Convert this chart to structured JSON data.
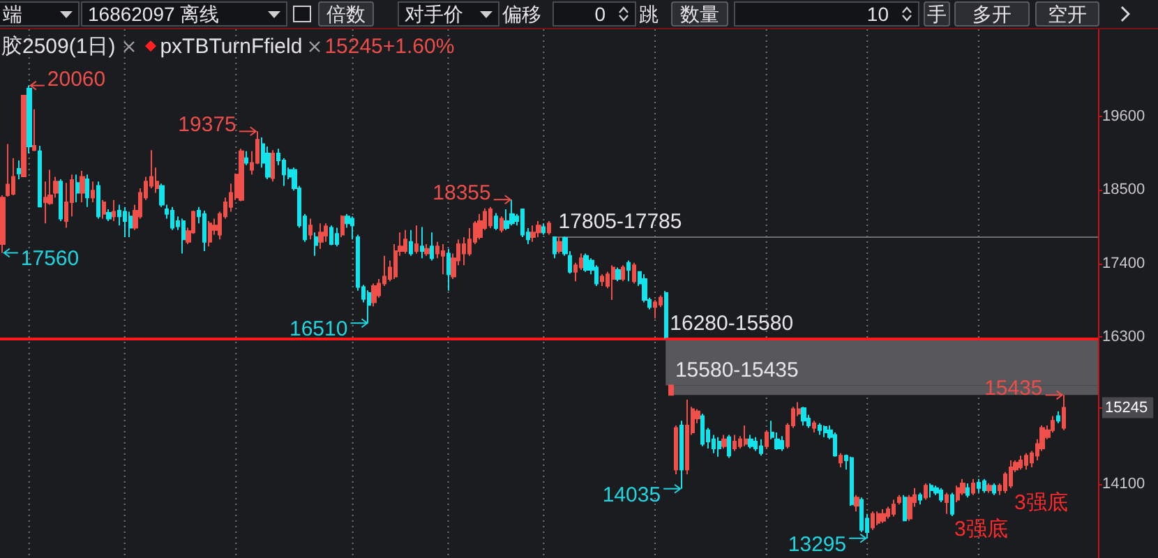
{
  "chart_data": {
    "type": "candlestick",
    "title": "胶2509(1日)",
    "subtitle": "pxTBTurnFfield",
    "annotations": [
      "端",
      "16862097 离线",
      "倍数",
      "对手价",
      "偏移",
      "0",
      "跳",
      "数量",
      "10",
      "手",
      "多开",
      "空开",
      "15245+1.60%",
      "20060",
      "17560",
      "19375",
      "16510",
      "18355",
      "14035",
      "13295",
      "15435",
      "3强底",
      "3强底"
    ],
    "categories": [
      null,
      null,
      null,
      null,
      null,
      null,
      null,
      null,
      null,
      null,
      null,
      null,
      null,
      null,
      null,
      null,
      null,
      null,
      null,
      null,
      null,
      null,
      null,
      null,
      null,
      null,
      null,
      null,
      null,
      null,
      null,
      null,
      null,
      null,
      null,
      null,
      null,
      null,
      null,
      null,
      null,
      null,
      null,
      null,
      null,
      null,
      null,
      null,
      null,
      null,
      null,
      null,
      null,
      null,
      null,
      null,
      null,
      null,
      null,
      null,
      null,
      null,
      null,
      null,
      null,
      null,
      null,
      null,
      null,
      null,
      null,
      null,
      null,
      null,
      null,
      null,
      null,
      null,
      null,
      null,
      null,
      null,
      null,
      null,
      null,
      null,
      null,
      null,
      null,
      null,
      null,
      null,
      null,
      null,
      null,
      null,
      null,
      null,
      null,
      null,
      null,
      null,
      null,
      null,
      null,
      null,
      null,
      null,
      null,
      null,
      null,
      null,
      null,
      null,
      null,
      null,
      null,
      null,
      null,
      null,
      null,
      null,
      null,
      null,
      null,
      null,
      null,
      null,
      null,
      null,
      null,
      null,
      null,
      null,
      null,
      null,
      null,
      null,
      null,
      null,
      null,
      null,
      null,
      null,
      null,
      null,
      null,
      null,
      null,
      null,
      null,
      null,
      null,
      null,
      null,
      null,
      null,
      null,
      null,
      null,
      null,
      null,
      null,
      null,
      null,
      null,
      null,
      null,
      null,
      null,
      null,
      null,
      null,
      null,
      null,
      null,
      null,
      null,
      null,
      null,
      null,
      null,
      null,
      null,
      null,
      null,
      null,
      null,
      null,
      null,
      null,
      null,
      null,
      null,
      null,
      null,
      null,
      null,
      null,
      null,
      null,
      null,
      null,
      null,
      null,
      null,
      null
    ],
    "ohlc": [
      [
        17690,
        18420,
        17560,
        18385
      ],
      [
        18420,
        19185,
        18400,
        18580
      ],
      [
        18440,
        18975,
        18420,
        18695
      ],
      [
        18815,
        18940,
        18660,
        18745
      ],
      [
        18700,
        19910,
        18690,
        19910
      ],
      [
        20015,
        20060,
        19045,
        19150
      ],
      [
        19095,
        19705,
        19080,
        19160
      ],
      [
        19080,
        19160,
        18245,
        18250
      ],
      [
        18315,
        18625,
        18000,
        18385
      ],
      [
        18300,
        18800,
        18280,
        18420
      ],
      [
        18455,
        18695,
        18385,
        18625
      ],
      [
        18625,
        18660,
        18035,
        18070
      ],
      [
        18035,
        18605,
        17935,
        18315
      ],
      [
        18315,
        18730,
        18105,
        18650
      ],
      [
        18605,
        18730,
        18315,
        18455
      ],
      [
        18455,
        18785,
        18315,
        18695
      ],
      [
        18660,
        18730,
        18245,
        18385
      ],
      [
        18385,
        18625,
        18315,
        18490
      ],
      [
        18560,
        18625,
        18070,
        18105
      ],
      [
        18140,
        18350,
        18070,
        18315
      ],
      [
        18160,
        18210,
        18035,
        18070
      ],
      [
        18105,
        18350,
        18035,
        18175
      ],
      [
        18190,
        18280,
        17970,
        18105
      ],
      [
        18175,
        18245,
        17795,
        18035
      ],
      [
        18105,
        18175,
        17795,
        17935
      ],
      [
        17935,
        18280,
        17900,
        18190
      ],
      [
        18105,
        18525,
        18070,
        18455
      ],
      [
        18385,
        18695,
        18350,
        18625
      ],
      [
        18560,
        19095,
        18525,
        18695
      ],
      [
        18525,
        18835,
        18455,
        18625
      ],
      [
        18560,
        18595,
        18245,
        18280
      ],
      [
        18210,
        18280,
        18070,
        18140
      ],
      [
        18190,
        18245,
        17900,
        17935
      ],
      [
        18035,
        18105,
        17900,
        17955
      ],
      [
        18035,
        18070,
        17550,
        17760
      ],
      [
        17725,
        17935,
        17690,
        17885
      ],
      [
        17865,
        18190,
        17845,
        18175
      ],
      [
        18190,
        18245,
        18000,
        18105
      ],
      [
        18140,
        18190,
        17585,
        17725
      ],
      [
        17725,
        18035,
        17655,
        18000
      ],
      [
        17900,
        18070,
        17830,
        17970
      ],
      [
        17830,
        18175,
        17760,
        18140
      ],
      [
        18105,
        18385,
        18070,
        18315
      ],
      [
        18245,
        18595,
        18175,
        18455
      ],
      [
        18385,
        18745,
        18350,
        18730
      ],
      [
        18350,
        19115,
        18330,
        19080
      ],
      [
        18975,
        19080,
        18870,
        18905
      ],
      [
        18800,
        19080,
        18730,
        18905
      ],
      [
        18905,
        19375,
        18885,
        19250
      ],
      [
        19185,
        19285,
        18835,
        18905
      ],
      [
        19045,
        19150,
        18660,
        18695
      ],
      [
        18675,
        19095,
        18625,
        19045
      ],
      [
        19045,
        19115,
        18870,
        18940
      ],
      [
        18940,
        18975,
        18560,
        18730
      ],
      [
        18800,
        18835,
        18660,
        18695
      ],
      [
        18800,
        18835,
        18490,
        18525
      ],
      [
        18525,
        18560,
        17935,
        17970
      ],
      [
        18105,
        18140,
        17725,
        17760
      ],
      [
        17830,
        18070,
        17760,
        17970
      ],
      [
        17795,
        17865,
        17515,
        17675
      ],
      [
        17725,
        18000,
        17620,
        17865
      ],
      [
        17815,
        18000,
        17725,
        17955
      ],
      [
        17935,
        17970,
        17675,
        17690
      ],
      [
        17845,
        17935,
        17655,
        17690
      ],
      [
        17830,
        18120,
        17795,
        18105
      ],
      [
        18105,
        18140,
        17935,
        18000
      ],
      [
        18070,
        18105,
        17760,
        17970
      ],
      [
        17795,
        17830,
        16995,
        17050
      ],
      [
        17050,
        17080,
        16820,
        16870
      ],
      [
        16960,
        17000,
        16510,
        16780
      ],
      [
        16820,
        17100,
        16760,
        17065
      ],
      [
        16925,
        17170,
        16890,
        17100
      ],
      [
        17100,
        17515,
        17065,
        17205
      ],
      [
        17170,
        17445,
        17135,
        17340
      ],
      [
        17205,
        17690,
        17170,
        17585
      ],
      [
        17585,
        17865,
        17515,
        17655
      ],
      [
        17585,
        17900,
        17550,
        17760
      ],
      [
        17725,
        17900,
        17515,
        17550
      ],
      [
        17585,
        17970,
        17550,
        17690
      ],
      [
        17655,
        17945,
        17480,
        17585
      ],
      [
        17550,
        17690,
        17515,
        17620
      ],
      [
        17655,
        17865,
        17445,
        17480
      ],
      [
        17550,
        17725,
        17480,
        17655
      ],
      [
        17515,
        17690,
        17240,
        17585
      ],
      [
        17550,
        17620,
        16995,
        17240
      ],
      [
        17205,
        17550,
        17170,
        17480
      ],
      [
        17445,
        17760,
        17375,
        17690
      ],
      [
        17550,
        17795,
        17375,
        17690
      ],
      [
        17550,
        17930,
        17515,
        17760
      ],
      [
        17725,
        18035,
        17690,
        18000
      ],
      [
        17795,
        18140,
        17760,
        18035
      ],
      [
        17930,
        18225,
        17900,
        18175
      ],
      [
        17970,
        18245,
        17930,
        18210
      ],
      [
        18105,
        18155,
        17900,
        17930
      ],
      [
        17900,
        18105,
        17865,
        18070
      ],
      [
        18035,
        18210,
        17900,
        17930
      ],
      [
        18140,
        18355,
        17970,
        18000
      ],
      [
        18105,
        18140,
        17970,
        18035
      ],
      [
        18210,
        18215,
        17795,
        17830
      ],
      [
        17865,
        17930,
        17690,
        17760
      ],
      [
        17795,
        17970,
        17725,
        17865
      ],
      [
        17865,
        18035,
        17795,
        17970
      ],
      [
        17945,
        18000,
        17830,
        17865
      ],
      [
        17865,
        18035,
        17830,
        18000
      ],
      [
        17795,
        17805,
        17480,
        17550
      ],
      [
        17585,
        17795,
        17550,
        17725
      ],
      [
        17785,
        17805,
        17515,
        17550
      ],
      [
        17515,
        17585,
        17250,
        17275
      ],
      [
        17275,
        17410,
        17135,
        17375
      ],
      [
        17340,
        17550,
        17305,
        17480
      ],
      [
        17515,
        17550,
        17275,
        17305
      ],
      [
        17445,
        17480,
        17240,
        17305
      ],
      [
        17340,
        17375,
        17065,
        17100
      ],
      [
        17135,
        17240,
        17065,
        17205
      ],
      [
        17065,
        17275,
        17030,
        17240
      ],
      [
        17170,
        17375,
        16855,
        17340
      ],
      [
        17305,
        17340,
        17135,
        17170
      ],
      [
        17170,
        17375,
        17135,
        17340
      ],
      [
        17410,
        17445,
        17135,
        17305
      ],
      [
        17135,
        17410,
        17100,
        17375
      ],
      [
        17275,
        17280,
        17065,
        17100
      ],
      [
        17170,
        17240,
        16820,
        16855
      ],
      [
        16855,
        16890,
        16715,
        16750
      ],
      [
        16750,
        16855,
        16580,
        16820
      ],
      [
        16785,
        16925,
        16750,
        16890
      ],
      [
        16960,
        16990,
        16280,
        16300
      ],
      [
        15435,
        15580,
        15435,
        15580
      ],
      [
        14320,
        14980,
        14250,
        14945
      ],
      [
        14980,
        15050,
        14035,
        14320
      ],
      [
        14320,
        15365,
        14250,
        14980
      ],
      [
        14875,
        15260,
        14840,
        15225
      ],
      [
        15085,
        15225,
        15015,
        15190
      ],
      [
        15120,
        15155,
        14670,
        14705
      ],
      [
        14910,
        14945,
        14635,
        14740
      ],
      [
        14775,
        14840,
        14565,
        14635
      ],
      [
        14740,
        14805,
        14515,
        14635
      ],
      [
        14670,
        14840,
        14635,
        14775
      ],
      [
        14805,
        14840,
        14495,
        14530
      ],
      [
        14635,
        14840,
        14600,
        14740
      ],
      [
        14670,
        14820,
        14635,
        14775
      ],
      [
        14705,
        14980,
        14670,
        14775
      ],
      [
        14775,
        14840,
        14635,
        14670
      ],
      [
        14740,
        14805,
        14600,
        14635
      ],
      [
        14670,
        14775,
        14530,
        14565
      ],
      [
        14670,
        14910,
        14635,
        14875
      ],
      [
        14875,
        15050,
        14775,
        14805
      ],
      [
        14775,
        14875,
        14615,
        14635
      ],
      [
        14750,
        14820,
        14600,
        14635
      ],
      [
        14670,
        15015,
        14635,
        14980
      ],
      [
        14980,
        15260,
        14945,
        15225
      ],
      [
        15155,
        15330,
        15120,
        15225
      ],
      [
        15240,
        15260,
        14980,
        15050
      ],
      [
        15085,
        15140,
        14945,
        14980
      ],
      [
        14945,
        15050,
        14875,
        15015
      ],
      [
        14980,
        15015,
        14840,
        14910
      ],
      [
        14960,
        14980,
        14805,
        14875
      ],
      [
        14910,
        14980,
        14775,
        14805
      ],
      [
        14840,
        14875,
        14515,
        14530
      ],
      [
        14425,
        14565,
        14355,
        14530
      ],
      [
        14530,
        14545,
        14320,
        14460
      ],
      [
        14495,
        14515,
        13780,
        13800
      ],
      [
        13780,
        13940,
        13695,
        13905
      ],
      [
        13870,
        13905,
        13385,
        13420
      ],
      [
        13590,
        13660,
        13295,
        13385
      ],
      [
        13455,
        13695,
        13420,
        13660
      ],
      [
        13525,
        13695,
        13490,
        13660
      ],
      [
        13555,
        13730,
        13525,
        13660
      ],
      [
        13625,
        13765,
        13590,
        13730
      ],
      [
        13660,
        13870,
        13620,
        13800
      ],
      [
        13835,
        13940,
        13800,
        13905
      ],
      [
        13905,
        13940,
        13555,
        13560
      ],
      [
        13590,
        13940,
        13555,
        13905
      ],
      [
        13835,
        14045,
        13765,
        13940
      ],
      [
        13940,
        13975,
        13800,
        13870
      ],
      [
        13905,
        14115,
        13870,
        14080
      ],
      [
        14080,
        14115,
        13905,
        14010
      ],
      [
        14045,
        14080,
        13940,
        13975
      ],
      [
        14010,
        14045,
        13835,
        13870
      ],
      [
        13835,
        13975,
        13660,
        13940
      ],
      [
        13940,
        13975,
        13625,
        13660
      ],
      [
        13870,
        14080,
        13835,
        14045
      ],
      [
        13975,
        14180,
        13940,
        14115
      ],
      [
        14045,
        14115,
        13905,
        13940
      ],
      [
        13975,
        14180,
        13940,
        14115
      ],
      [
        14125,
        14180,
        13975,
        14045
      ],
      [
        14150,
        14180,
        13975,
        14010
      ],
      [
        14010,
        14115,
        13975,
        14080
      ],
      [
        14080,
        14115,
        13940,
        13975
      ],
      [
        14010,
        14115,
        13940,
        14080
      ],
      [
        14010,
        14285,
        13970,
        14250
      ],
      [
        14080,
        14460,
        14045,
        14355
      ],
      [
        14320,
        14460,
        14285,
        14425
      ],
      [
        14355,
        14530,
        14320,
        14460
      ],
      [
        14390,
        14565,
        14320,
        14530
      ],
      [
        14425,
        14600,
        14355,
        14565
      ],
      [
        14530,
        14775,
        14460,
        14705
      ],
      [
        14635,
        14980,
        14600,
        14945
      ],
      [
        14805,
        14980,
        14775,
        14910
      ],
      [
        14910,
        15120,
        14875,
        15050
      ],
      [
        15120,
        15190,
        15015,
        15050
      ],
      [
        14945,
        15435,
        14910,
        15245
      ],
      null,
      null,
      null,
      null,
      null,
      null
    ],
    "colors": [
      "#f0504a",
      "#f0504a",
      "#f0504a",
      "#13e4ec",
      "#f0504a",
      "#13e4ec",
      "#f0504a",
      "#13e4ec",
      "#f0504a",
      "#f0504a",
      "#f0504a",
      "#13e4ec",
      "#f0504a",
      "#f0504a",
      "#13e4ec",
      "#f0504a",
      "#13e4ec",
      "#f0504a",
      "#13e4ec",
      "#f0504a",
      "#13e4ec",
      "#f0504a",
      "#13e4ec",
      "#13e4ec",
      "#13e4ec",
      "#f0504a",
      "#f0504a",
      "#f0504a",
      "#f0504a",
      "#f0504a",
      "#13e4ec",
      "#13e4ec",
      "#13e4ec",
      "#13e4ec",
      "#13e4ec",
      "#f0504a",
      "#f0504a",
      "#13e4ec",
      "#13e4ec",
      "#f0504a",
      "#f0504a",
      "#f0504a",
      "#f0504a",
      "#f0504a",
      "#f0504a",
      "#f0504a",
      "#13e4ec",
      "#f0504a",
      "#f0504a",
      "#13e4ec",
      "#13e4ec",
      "#f0504a",
      "#13e4ec",
      "#13e4ec",
      "#13e4ec",
      "#13e4ec",
      "#13e4ec",
      "#13e4ec",
      "#f0504a",
      "#13e4ec",
      "#f0504a",
      "#f0504a",
      "#13e4ec",
      "#13e4ec",
      "#f0504a",
      "#13e4ec",
      "#13e4ec",
      "#13e4ec",
      "#13e4ec",
      "#13e4ec",
      "#f0504a",
      "#f0504a",
      "#f0504a",
      "#f0504a",
      "#f0504a",
      "#f0504a",
      "#f0504a",
      "#13e4ec",
      "#f0504a",
      "#13e4ec",
      "#f0504a",
      "#13e4ec",
      "#f0504a",
      "#f0504a",
      "#13e4ec",
      "#f0504a",
      "#f0504a",
      "#f0504a",
      "#f0504a",
      "#f0504a",
      "#f0504a",
      "#f0504a",
      "#f0504a",
      "#13e4ec",
      "#f0504a",
      "#13e4ec",
      "#13e4ec",
      "#13e4ec",
      "#13e4ec",
      "#13e4ec",
      "#f0504a",
      "#f0504a",
      "#13e4ec",
      "#f0504a",
      "#13e4ec",
      "#f0504a",
      "#13e4ec",
      "#13e4ec",
      "#f0504a",
      "#f0504a",
      "#13e4ec",
      "#13e4ec",
      "#13e4ec",
      "#f0504a",
      "#f0504a",
      "#f0504a",
      "#13e4ec",
      "#f0504a",
      "#13e4ec",
      "#f0504a",
      "#13e4ec",
      "#13e4ec",
      "#13e4ec",
      "#f0504a",
      "#f0504a",
      "#13e4ec",
      "#f0504a",
      "#f0504a",
      "#13e4ec",
      "#f0504a",
      "#f0504a",
      "#f0504a",
      "#13e4ec",
      "#13e4ec",
      "#13e4ec",
      "#13e4ec",
      "#f0504a",
      "#13e4ec",
      "#f0504a",
      "#f0504a",
      "#f0504a",
      "#13e4ec",
      "#13e4ec",
      "#13e4ec",
      "#f0504a",
      "#13e4ec",
      "#13e4ec",
      "#13e4ec",
      "#f0504a",
      "#f0504a",
      "#f0504a",
      "#13e4ec",
      "#13e4ec",
      "#f0504a",
      "#13e4ec",
      "#13e4ec",
      "#13e4ec",
      "#13e4ec",
      "#f0504a",
      "#13e4ec",
      "#13e4ec",
      "#f0504a",
      "#13e4ec",
      "#13e4ec",
      "#f0504a",
      "#f0504a",
      "#f0504a",
      "#f0504a",
      "#f0504a",
      "#f0504a",
      "#13e4ec",
      "#f0504a",
      "#f0504a",
      "#13e4ec",
      "#f0504a",
      "#13e4ec",
      "#13e4ec",
      "#13e4ec",
      "#f0504a",
      "#13e4ec",
      "#f0504a",
      "#f0504a",
      "#13e4ec",
      "#f0504a",
      "#13e4ec",
      "#13e4ec",
      "#f0504a",
      "#13e4ec",
      "#f0504a",
      "#f0504a",
      "#f0504a",
      "#f0504a",
      "#f0504a",
      "#f0504a",
      "#f0504a",
      "#f0504a",
      "#f0504a",
      "#f0504a",
      "#f0504a",
      "#13e4ec",
      "#f0504a",
      null,
      null,
      null,
      null,
      null,
      null
    ],
    "ylim": [
      13000,
      20900
    ],
    "yticks": [
      14100,
      15245,
      16300,
      17400,
      18500,
      19600
    ],
    "tick_labels": "y",
    "bands": [
      {
        "axis": "y",
        "from": 17785,
        "to": 17805,
        "label": "17805-17785",
        "color": "#6e6e72"
      },
      {
        "axis": "y",
        "from": 15580,
        "to": 16280,
        "label": "16280-15580",
        "color": "#58585c"
      },
      {
        "axis": "y",
        "from": 15435,
        "to": 15580,
        "label": "15580-15435",
        "color": "#58585c"
      }
    ],
    "ref_lines": [
      {
        "axis": "y",
        "value": 16280,
        "color": "#ff1a1a"
      }
    ]
  }
}
